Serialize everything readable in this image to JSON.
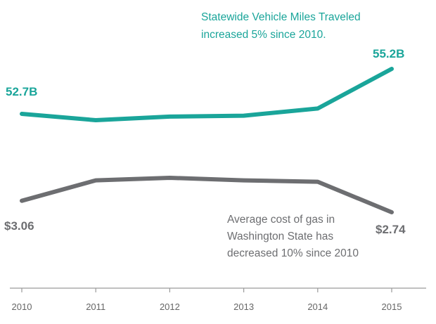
{
  "chart_data": {
    "type": "line",
    "title": "",
    "xlabel": "",
    "ylabel": "",
    "categories": [
      "2010",
      "2011",
      "2012",
      "2013",
      "2014",
      "2015"
    ],
    "series": [
      {
        "name": "Statewide Vehicle Miles Traveled",
        "unit": "billion miles",
        "values": [
          52.7,
          52.35,
          52.55,
          52.6,
          53.0,
          55.2
        ],
        "color": "#1aa59a",
        "start_label": "52.7B",
        "end_label": "55.2B"
      },
      {
        "name": "Average cost of gas in Washington State",
        "unit": "USD per gallon",
        "values": [
          3.06,
          3.63,
          3.7,
          3.63,
          3.59,
          2.74
        ],
        "color": "#6d6e71",
        "start_label": "$3.06",
        "end_label": "$2.74"
      }
    ],
    "annotations": {
      "vmt_line1": "Statewide Vehicle Miles Traveled",
      "vmt_line2": "increased  5% since 2010.",
      "gas_line1": "Average cost of gas in",
      "gas_line2": "Washington State has",
      "gas_line3": "decreased 10% since 2010"
    },
    "grid": false,
    "legend": "none"
  }
}
